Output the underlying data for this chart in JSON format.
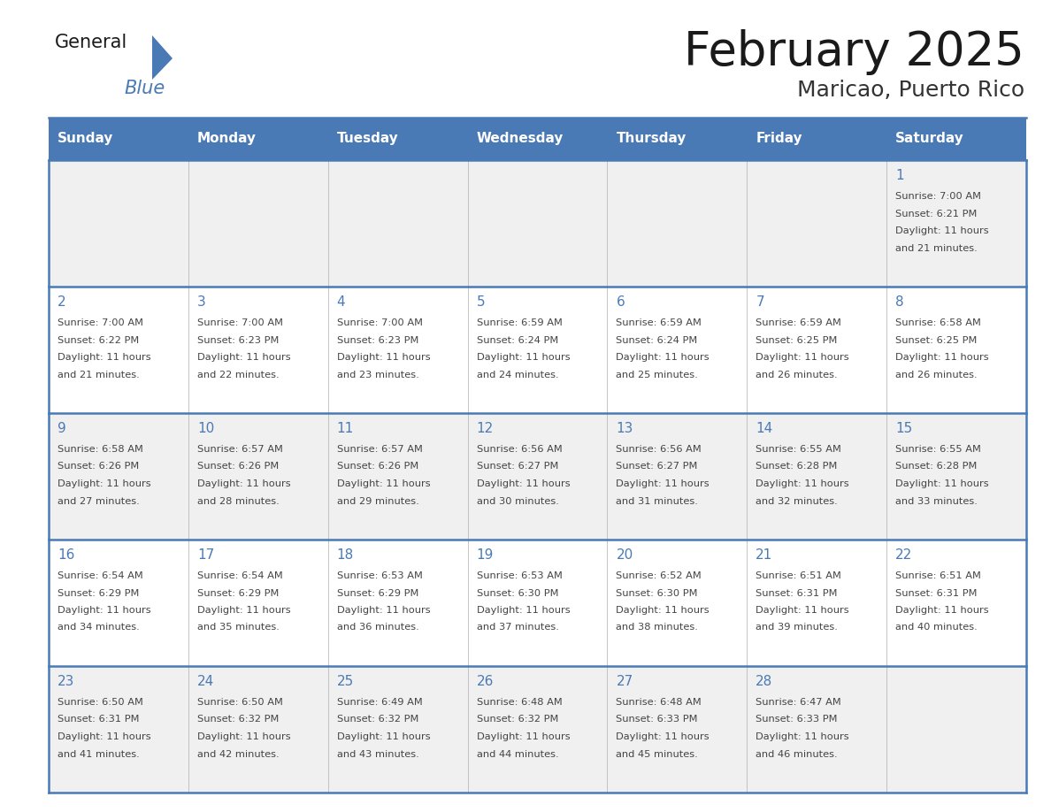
{
  "title": "February 2025",
  "subtitle": "Maricao, Puerto Rico",
  "days_of_week": [
    "Sunday",
    "Monday",
    "Tuesday",
    "Wednesday",
    "Thursday",
    "Friday",
    "Saturday"
  ],
  "header_bg": "#4a7ab5",
  "header_text": "#ffffff",
  "cell_bg_light": "#f0f0f0",
  "cell_bg_white": "#ffffff",
  "day_number_color": "#4a7ab5",
  "text_color": "#444444",
  "border_color": "#4a7ab5",
  "grid_line_color": "#bbbbbb",
  "title_color": "#1a1a1a",
  "subtitle_color": "#333333",
  "logo_general_color": "#1a1a1a",
  "logo_blue_color": "#4a7ab5",
  "logo_triangle_color": "#4a7ab5",
  "calendar_data": [
    [
      null,
      null,
      null,
      null,
      null,
      null,
      {
        "day": 1,
        "sunrise": "7:00 AM",
        "sunset": "6:21 PM",
        "daylight": "11 hours and 21 minutes."
      }
    ],
    [
      {
        "day": 2,
        "sunrise": "7:00 AM",
        "sunset": "6:22 PM",
        "daylight": "11 hours and 21 minutes."
      },
      {
        "day": 3,
        "sunrise": "7:00 AM",
        "sunset": "6:23 PM",
        "daylight": "11 hours and 22 minutes."
      },
      {
        "day": 4,
        "sunrise": "7:00 AM",
        "sunset": "6:23 PM",
        "daylight": "11 hours and 23 minutes."
      },
      {
        "day": 5,
        "sunrise": "6:59 AM",
        "sunset": "6:24 PM",
        "daylight": "11 hours and 24 minutes."
      },
      {
        "day": 6,
        "sunrise": "6:59 AM",
        "sunset": "6:24 PM",
        "daylight": "11 hours and 25 minutes."
      },
      {
        "day": 7,
        "sunrise": "6:59 AM",
        "sunset": "6:25 PM",
        "daylight": "11 hours and 26 minutes."
      },
      {
        "day": 8,
        "sunrise": "6:58 AM",
        "sunset": "6:25 PM",
        "daylight": "11 hours and 26 minutes."
      }
    ],
    [
      {
        "day": 9,
        "sunrise": "6:58 AM",
        "sunset": "6:26 PM",
        "daylight": "11 hours and 27 minutes."
      },
      {
        "day": 10,
        "sunrise": "6:57 AM",
        "sunset": "6:26 PM",
        "daylight": "11 hours and 28 minutes."
      },
      {
        "day": 11,
        "sunrise": "6:57 AM",
        "sunset": "6:26 PM",
        "daylight": "11 hours and 29 minutes."
      },
      {
        "day": 12,
        "sunrise": "6:56 AM",
        "sunset": "6:27 PM",
        "daylight": "11 hours and 30 minutes."
      },
      {
        "day": 13,
        "sunrise": "6:56 AM",
        "sunset": "6:27 PM",
        "daylight": "11 hours and 31 minutes."
      },
      {
        "day": 14,
        "sunrise": "6:55 AM",
        "sunset": "6:28 PM",
        "daylight": "11 hours and 32 minutes."
      },
      {
        "day": 15,
        "sunrise": "6:55 AM",
        "sunset": "6:28 PM",
        "daylight": "11 hours and 33 minutes."
      }
    ],
    [
      {
        "day": 16,
        "sunrise": "6:54 AM",
        "sunset": "6:29 PM",
        "daylight": "11 hours and 34 minutes."
      },
      {
        "day": 17,
        "sunrise": "6:54 AM",
        "sunset": "6:29 PM",
        "daylight": "11 hours and 35 minutes."
      },
      {
        "day": 18,
        "sunrise": "6:53 AM",
        "sunset": "6:29 PM",
        "daylight": "11 hours and 36 minutes."
      },
      {
        "day": 19,
        "sunrise": "6:53 AM",
        "sunset": "6:30 PM",
        "daylight": "11 hours and 37 minutes."
      },
      {
        "day": 20,
        "sunrise": "6:52 AM",
        "sunset": "6:30 PM",
        "daylight": "11 hours and 38 minutes."
      },
      {
        "day": 21,
        "sunrise": "6:51 AM",
        "sunset": "6:31 PM",
        "daylight": "11 hours and 39 minutes."
      },
      {
        "day": 22,
        "sunrise": "6:51 AM",
        "sunset": "6:31 PM",
        "daylight": "11 hours and 40 minutes."
      }
    ],
    [
      {
        "day": 23,
        "sunrise": "6:50 AM",
        "sunset": "6:31 PM",
        "daylight": "11 hours and 41 minutes."
      },
      {
        "day": 24,
        "sunrise": "6:50 AM",
        "sunset": "6:32 PM",
        "daylight": "11 hours and 42 minutes."
      },
      {
        "day": 25,
        "sunrise": "6:49 AM",
        "sunset": "6:32 PM",
        "daylight": "11 hours and 43 minutes."
      },
      {
        "day": 26,
        "sunrise": "6:48 AM",
        "sunset": "6:32 PM",
        "daylight": "11 hours and 44 minutes."
      },
      {
        "day": 27,
        "sunrise": "6:48 AM",
        "sunset": "6:33 PM",
        "daylight": "11 hours and 45 minutes."
      },
      {
        "day": 28,
        "sunrise": "6:47 AM",
        "sunset": "6:33 PM",
        "daylight": "11 hours and 46 minutes."
      },
      null
    ]
  ]
}
